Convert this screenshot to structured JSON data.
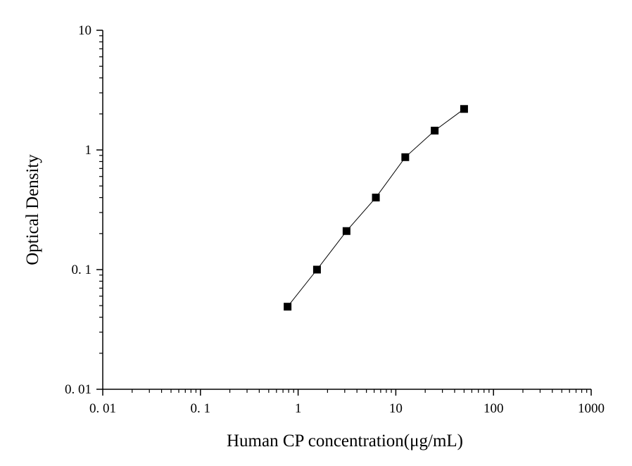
{
  "chart_data": {
    "type": "scatter",
    "title": "",
    "xlabel": "Human CP concentration(μg/mL)",
    "ylabel": "Optical Density",
    "x_scale": "log",
    "y_scale": "log",
    "xlim": [
      0.01,
      1000
    ],
    "ylim": [
      0.01,
      10
    ],
    "x_ticks": [
      0.01,
      0.1,
      1,
      10,
      100,
      1000
    ],
    "x_tick_labels": [
      "0. 01",
      "0. 1",
      "1",
      "10",
      "100",
      "1000"
    ],
    "y_ticks": [
      0.01,
      0.1,
      1,
      10
    ],
    "y_tick_labels": [
      "0. 01",
      "0. 1",
      "1",
      "10"
    ],
    "grid": false,
    "legend": "none",
    "marker": "square",
    "connected": true,
    "series": [
      {
        "x": [
          0.78,
          1.56,
          3.13,
          6.25,
          12.5,
          25,
          50
        ],
        "y": [
          0.049,
          0.1,
          0.21,
          0.4,
          0.87,
          1.45,
          2.2
        ]
      }
    ],
    "colors": {
      "marker": "#000000",
      "line": "#000000",
      "axis": "#000000"
    }
  }
}
